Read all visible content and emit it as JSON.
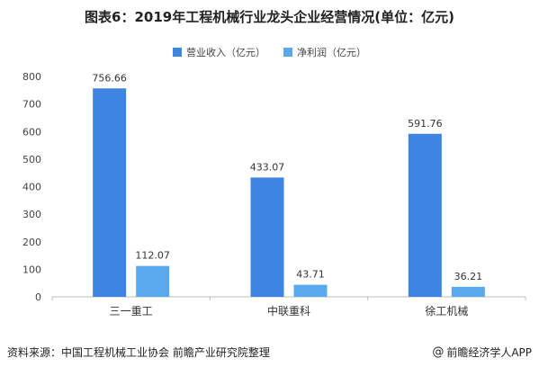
{
  "title": "图表6：2019年工程机械行业龙头企业经营情况(单位：亿元)",
  "legend": [
    {
      "label": "营业收入（亿元）",
      "color": "#3d85e0"
    },
    {
      "label": "净利润（亿元）",
      "color": "#5aa8ee"
    }
  ],
  "footer": {
    "source": "资料来源：中国工程机械工业协会 前瞻产业研究院整理",
    "brand_icon": "at-icon",
    "brand": "@前瞻经济学人APP"
  },
  "chart_data": {
    "type": "bar",
    "title": "图表6：2019年工程机械行业龙头企业经营情况(单位：亿元)",
    "categories": [
      "三一重工",
      "中联重科",
      "徐工机械"
    ],
    "series": [
      {
        "name": "营业收入（亿元）",
        "values": [
          756.66,
          433.07,
          591.76
        ],
        "color": "#3d85e0"
      },
      {
        "name": "净利润（亿元）",
        "values": [
          112.07,
          43.71,
          36.21
        ],
        "color": "#5aa8ee"
      }
    ],
    "value_labels": [
      [
        "756.66",
        "433.07",
        "591.76"
      ],
      [
        "112.07",
        "43.71",
        "36.21"
      ]
    ],
    "ylim": [
      0,
      800
    ],
    "yticks": [
      "0",
      "100",
      "200",
      "300",
      "400",
      "500",
      "600",
      "700",
      "800"
    ],
    "grid": false,
    "legend_position": "top-center"
  }
}
